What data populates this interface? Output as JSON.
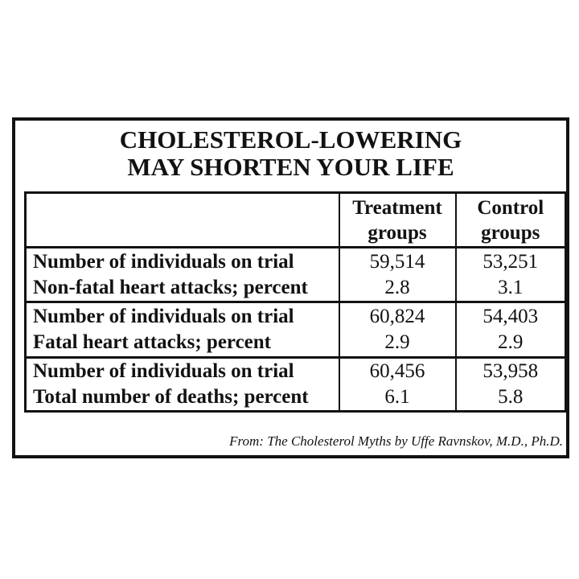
{
  "title": {
    "line1": "CHOLESTEROL-LOWERING",
    "line2": "MAY SHORTEN YOUR LIFE"
  },
  "source_note": "From: The Cholesterol Myths by Uffe Ravnskov, M.D., Ph.D.",
  "colors": {
    "ink": "#121212",
    "background": "#ffffff"
  },
  "table": {
    "header": {
      "col1": "",
      "col2_line1": "Treatment",
      "col2_line2": "groups",
      "col3_line1": "Control",
      "col3_line2": "groups"
    },
    "groups": [
      {
        "label_line1": "Number of individuals on trial",
        "label_line2": "Non-fatal heart attacks; percent",
        "treatment_line1": "59,514",
        "treatment_line2": "2.8",
        "control_line1": "53,251",
        "control_line2": "3.1"
      },
      {
        "label_line1": "Number of individuals on trial",
        "label_line2": "Fatal heart attacks; percent",
        "treatment_line1": "60,824",
        "treatment_line2": "2.9",
        "control_line1": "54,403",
        "control_line2": "2.9"
      },
      {
        "label_line1": "Number of individuals on trial",
        "label_line2": "Total number of deaths; percent",
        "treatment_line1": "60,456",
        "treatment_line2": "6.1",
        "control_line1": "53,958",
        "control_line2": "5.8"
      }
    ]
  },
  "chart_data": {
    "type": "table",
    "title": "CHOLESTEROL-LOWERING MAY SHORTEN YOUR LIFE",
    "columns": [
      "",
      "Treatment groups",
      "Control groups"
    ],
    "rows": [
      [
        "Number of individuals on trial",
        "59,514",
        "53,251"
      ],
      [
        "Non-fatal heart attacks; percent",
        "2.8",
        "3.1"
      ],
      [
        "Number of individuals on trial",
        "60,824",
        "54,403"
      ],
      [
        "Fatal heart attacks; percent",
        "2.9",
        "2.9"
      ],
      [
        "Number of individuals on trial",
        "60,456",
        "53,958"
      ],
      [
        "Total number of deaths; percent",
        "6.1",
        "5.8"
      ]
    ],
    "source": "From: The Cholesterol Myths by Uffe Ravnskov, M.D., Ph.D."
  }
}
